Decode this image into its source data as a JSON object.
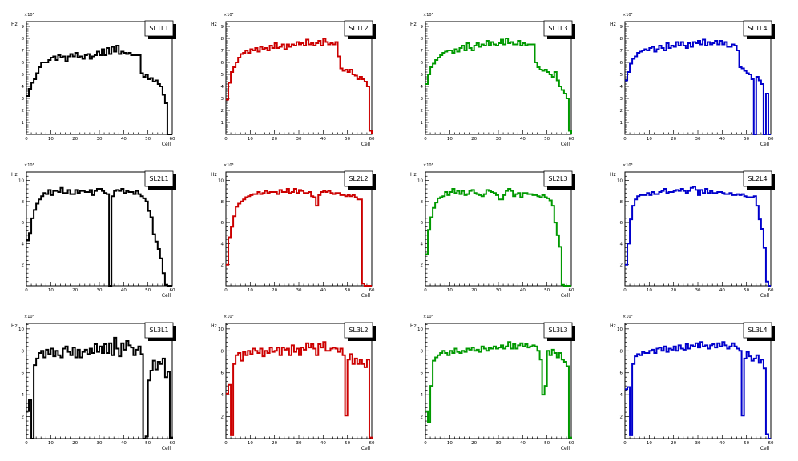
{
  "chart_data": [
    {
      "type": "step",
      "title": "SL1L1",
      "ylabel": "Hz",
      "xlabel": "Cell",
      "exponent": "×10³",
      "xlim": [
        0,
        60
      ],
      "ylim": [
        0,
        9.4
      ],
      "yticks": [
        1,
        2,
        3,
        4,
        5,
        6,
        7,
        8,
        9
      ],
      "xticks": [
        0,
        10,
        20,
        30,
        40,
        50,
        60
      ],
      "color": "#000000",
      "values": [
        3.2,
        3.8,
        4.3,
        4.6,
        5.1,
        5.6,
        6.0,
        6.0,
        6.0,
        6.2,
        6.4,
        6.5,
        6.2,
        6.6,
        6.4,
        6.5,
        6.1,
        6.5,
        6.7,
        6.5,
        6.8,
        6.4,
        6.5,
        6.3,
        6.6,
        6.7,
        6.3,
        6.5,
        6.6,
        6.9,
        6.6,
        7.1,
        6.6,
        7.2,
        6.7,
        7.3,
        6.9,
        7.4,
        6.7,
        6.9,
        6.8,
        6.7,
        6.8,
        6.6,
        6.6,
        6.6,
        6.6,
        5.1,
        4.8,
        5.0,
        4.6,
        4.7,
        4.4,
        4.5,
        4.2,
        4.0,
        3.3,
        2.6,
        0.0,
        0.0
      ]
    },
    {
      "type": "step",
      "title": "SL1L2",
      "ylabel": "Hz",
      "xlabel": "Cell",
      "exponent": "×10³",
      "xlim": [
        0,
        60
      ],
      "ylim": [
        0,
        9.4
      ],
      "yticks": [
        1,
        2,
        3,
        4,
        5,
        6,
        7,
        8,
        9
      ],
      "xticks": [
        0,
        10,
        20,
        30,
        40,
        50,
        60
      ],
      "color": "#cc0000",
      "values": [
        2.9,
        4.3,
        5.2,
        5.6,
        6.0,
        6.4,
        6.7,
        6.8,
        7.0,
        6.8,
        7.1,
        7.0,
        7.2,
        6.9,
        7.3,
        7.1,
        7.2,
        7.0,
        7.4,
        7.2,
        7.6,
        7.2,
        7.3,
        7.5,
        7.1,
        7.5,
        7.3,
        7.5,
        7.4,
        7.7,
        7.5,
        7.6,
        7.4,
        7.9,
        7.5,
        7.6,
        7.4,
        7.6,
        7.8,
        7.4,
        8.0,
        7.7,
        7.5,
        7.6,
        7.5,
        7.7,
        6.5,
        5.5,
        5.3,
        5.4,
        5.2,
        5.4,
        5.0,
        4.9,
        4.6,
        4.8,
        4.6,
        4.4,
        4.0,
        0.3
      ]
    },
    {
      "type": "step",
      "title": "SL1L3",
      "ylabel": "Hz",
      "xlabel": "Cell",
      "exponent": "×10³",
      "xlim": [
        0,
        60
      ],
      "ylim": [
        0,
        9.4
      ],
      "yticks": [
        1,
        2,
        3,
        4,
        5,
        6,
        7,
        8,
        9
      ],
      "xticks": [
        0,
        10,
        20,
        30,
        40,
        50,
        60
      ],
      "color": "#009900",
      "values": [
        4.2,
        5.0,
        5.6,
        5.9,
        6.2,
        6.4,
        6.6,
        6.8,
        6.9,
        7.0,
        7.0,
        6.8,
        7.1,
        6.9,
        7.2,
        7.4,
        7.0,
        7.6,
        7.2,
        7.0,
        7.4,
        7.6,
        7.3,
        7.5,
        7.4,
        7.8,
        7.4,
        7.7,
        7.5,
        7.4,
        7.6,
        7.9,
        7.5,
        8.0,
        7.6,
        7.7,
        7.5,
        7.5,
        7.8,
        7.4,
        7.6,
        7.4,
        7.5,
        7.5,
        7.5,
        6.0,
        5.6,
        5.4,
        5.3,
        5.4,
        5.2,
        5.0,
        4.8,
        5.2,
        4.5,
        4.0,
        3.7,
        3.4,
        3.0,
        0.3
      ]
    },
    {
      "type": "step",
      "title": "SL1L4",
      "ylabel": "Hz",
      "xlabel": "Cell",
      "exponent": "×10³",
      "xlim": [
        0,
        60
      ],
      "ylim": [
        0,
        9.4
      ],
      "yticks": [
        1,
        2,
        3,
        4,
        5,
        6,
        7,
        8,
        9
      ],
      "xticks": [
        0,
        10,
        20,
        30,
        40,
        50,
        60
      ],
      "color": "#0000cc",
      "values": [
        4.5,
        5.2,
        5.9,
        6.3,
        6.5,
        6.8,
        6.9,
        7.0,
        7.1,
        7.0,
        7.2,
        7.3,
        6.9,
        7.1,
        7.4,
        7.2,
        7.0,
        7.6,
        7.2,
        7.4,
        7.3,
        7.7,
        7.4,
        7.7,
        7.4,
        7.2,
        7.6,
        7.3,
        7.7,
        7.6,
        7.8,
        7.5,
        7.9,
        7.4,
        7.7,
        7.5,
        7.6,
        7.8,
        7.5,
        7.8,
        7.5,
        7.7,
        7.3,
        7.3,
        7.5,
        7.4,
        7.0,
        5.6,
        5.5,
        5.3,
        5.1,
        5.0,
        4.6,
        0.0,
        4.8,
        4.5,
        4.2,
        0.0,
        3.4,
        0.0
      ]
    },
    {
      "type": "step",
      "title": "SL2L1",
      "ylabel": "Hz",
      "xlabel": "Cell",
      "exponent": "×10³",
      "xlim": [
        0,
        60
      ],
      "ylim": [
        0,
        10.8
      ],
      "yticks": [
        2,
        4,
        6,
        8,
        10
      ],
      "xticks": [
        0,
        10,
        20,
        30,
        40,
        50,
        60
      ],
      "color": "#000000",
      "values": [
        4.3,
        5.0,
        6.4,
        7.2,
        7.8,
        8.2,
        8.5,
        8.8,
        8.7,
        9.1,
        8.6,
        9.0,
        9.0,
        8.9,
        9.3,
        8.8,
        8.8,
        9.1,
        8.7,
        8.7,
        9.1,
        8.8,
        9.0,
        9.0,
        8.9,
        8.9,
        9.1,
        8.6,
        9.0,
        9.2,
        9.2,
        9.0,
        8.8,
        8.7,
        0.0,
        8.5,
        9.0,
        9.1,
        9.0,
        9.2,
        8.8,
        9.0,
        8.9,
        8.9,
        8.7,
        9.0,
        8.7,
        8.5,
        8.3,
        8.0,
        7.1,
        6.5,
        4.9,
        4.2,
        3.5,
        2.6,
        1.2,
        0.1,
        0.0,
        0.0
      ]
    },
    {
      "type": "step",
      "title": "SL2L2",
      "ylabel": "Hz",
      "xlabel": "Cell",
      "exponent": "×10³",
      "xlim": [
        0,
        60
      ],
      "ylim": [
        0,
        10.8
      ],
      "yticks": [
        2,
        4,
        6,
        8,
        10
      ],
      "xticks": [
        0,
        10,
        20,
        30,
        40,
        50,
        60
      ],
      "color": "#cc0000",
      "values": [
        2.0,
        4.6,
        5.6,
        6.6,
        7.5,
        7.8,
        8.0,
        8.2,
        8.4,
        8.5,
        8.6,
        8.7,
        8.7,
        8.9,
        8.7,
        8.8,
        9.0,
        8.8,
        8.9,
        8.9,
        8.9,
        8.7,
        9.1,
        8.9,
        8.9,
        9.2,
        8.8,
        8.9,
        9.2,
        8.8,
        9.1,
        9.0,
        8.8,
        8.8,
        8.9,
        8.5,
        8.4,
        7.6,
        8.6,
        8.9,
        9.0,
        8.9,
        9.0,
        8.8,
        8.7,
        8.8,
        8.8,
        8.6,
        8.6,
        8.5,
        8.6,
        8.5,
        8.6,
        8.4,
        8.2,
        8.2,
        0.2,
        0.0,
        0.0,
        0.0
      ]
    },
    {
      "type": "step",
      "title": "SL2L3",
      "ylabel": "Hz",
      "xlabel": "Cell",
      "exponent": "×10³",
      "xlim": [
        0,
        60
      ],
      "ylim": [
        0,
        10.8
      ],
      "yticks": [
        2,
        4,
        6,
        8,
        10
      ],
      "xticks": [
        0,
        10,
        20,
        30,
        40,
        50,
        60
      ],
      "color": "#009900",
      "values": [
        3.0,
        5.3,
        6.5,
        7.4,
        7.9,
        8.3,
        8.4,
        8.5,
        8.9,
        8.6,
        8.9,
        9.2,
        8.8,
        9.0,
        8.7,
        9.0,
        8.6,
        8.7,
        9.0,
        9.1,
        8.8,
        8.7,
        8.6,
        8.5,
        8.7,
        9.1,
        9.0,
        8.9,
        8.8,
        8.6,
        8.2,
        8.2,
        8.6,
        9.0,
        9.2,
        9.0,
        8.5,
        8.7,
        8.8,
        8.4,
        8.8,
        8.8,
        8.7,
        8.7,
        8.6,
        8.6,
        8.5,
        8.4,
        8.6,
        8.4,
        8.3,
        8.1,
        7.6,
        6.0,
        4.8,
        3.7,
        0.1,
        0.0,
        0.0,
        0.0
      ]
    },
    {
      "type": "step",
      "title": "SL2L4",
      "ylabel": "Hz",
      "xlabel": "Cell",
      "exponent": "×10³",
      "xlim": [
        0,
        60
      ],
      "ylim": [
        0,
        10.8
      ],
      "yticks": [
        2,
        4,
        6,
        8,
        10
      ],
      "xticks": [
        0,
        10,
        20,
        30,
        40,
        50,
        60
      ],
      "color": "#0000cc",
      "values": [
        2.0,
        4.0,
        6.3,
        7.6,
        8.2,
        8.5,
        8.6,
        8.6,
        8.6,
        8.8,
        8.6,
        8.9,
        8.7,
        8.7,
        8.9,
        9.0,
        9.2,
        8.8,
        8.9,
        8.9,
        9.0,
        9.1,
        9.0,
        9.2,
        9.0,
        8.8,
        9.0,
        9.3,
        9.4,
        9.1,
        8.6,
        9.1,
        8.8,
        9.2,
        8.8,
        9.0,
        8.8,
        8.8,
        8.9,
        8.9,
        8.8,
        8.7,
        8.7,
        8.8,
        8.6,
        8.6,
        8.7,
        8.6,
        8.7,
        8.5,
        8.4,
        8.4,
        8.4,
        8.5,
        7.6,
        6.3,
        5.4,
        3.6,
        0.4,
        0.0
      ]
    },
    {
      "type": "step",
      "title": "SL3L1",
      "ylabel": "Hz",
      "xlabel": "Cell",
      "exponent": "×10³",
      "xlim": [
        0,
        60
      ],
      "ylim": [
        0,
        10.5
      ],
      "yticks": [
        2,
        4,
        6,
        8,
        10
      ],
      "xticks": [
        0,
        10,
        20,
        30,
        40,
        50,
        60
      ],
      "color": "#000000",
      "values": [
        2.5,
        3.5,
        0.0,
        6.7,
        7.3,
        7.8,
        8.0,
        7.4,
        8.1,
        7.7,
        8.2,
        7.5,
        8.0,
        7.6,
        7.4,
        8.2,
        8.4,
        7.9,
        7.6,
        8.3,
        7.4,
        8.1,
        7.4,
        7.9,
        8.1,
        7.7,
        8.2,
        7.8,
        8.6,
        7.9,
        8.4,
        7.8,
        8.6,
        7.8,
        8.7,
        7.6,
        9.2,
        8.2,
        7.5,
        8.7,
        8.1,
        8.9,
        8.5,
        8.3,
        7.6,
        8.1,
        8.4,
        7.7,
        0.0,
        0.2,
        5.3,
        6.2,
        7.1,
        6.3,
        7.0,
        6.8,
        7.3,
        5.6,
        6.1,
        0.1
      ]
    },
    {
      "type": "step",
      "title": "SL3L2",
      "ylabel": "Hz",
      "xlabel": "Cell",
      "exponent": "×10³",
      "xlim": [
        0,
        60
      ],
      "ylim": [
        0,
        10.5
      ],
      "yticks": [
        2,
        4,
        6,
        8,
        10
      ],
      "xticks": [
        0,
        10,
        20,
        30,
        40,
        50,
        60
      ],
      "color": "#cc0000",
      "values": [
        4.1,
        4.9,
        0.3,
        6.8,
        7.6,
        7.8,
        7.1,
        7.9,
        7.6,
        8.0,
        7.7,
        8.2,
        8.0,
        7.8,
        8.2,
        7.5,
        8.0,
        7.8,
        8.3,
        7.9,
        8.0,
        8.3,
        7.6,
        8.3,
        8.1,
        8.2,
        7.6,
        8.5,
        7.9,
        8.2,
        7.6,
        8.3,
        8.1,
        8.7,
        8.3,
        8.6,
        8.2,
        7.6,
        8.6,
        8.3,
        8.8,
        8.0,
        8.0,
        8.2,
        8.3,
        8.2,
        7.9,
        8.2,
        7.6,
        2.1,
        7.2,
        7.7,
        6.8,
        7.3,
        6.8,
        7.2,
        6.8,
        6.5,
        7.2,
        0.1
      ]
    },
    {
      "type": "step",
      "title": "SL3L3",
      "ylabel": "Hz",
      "xlabel": "Cell",
      "exponent": "×10³",
      "xlim": [
        0,
        60
      ],
      "ylim": [
        0,
        10.5
      ],
      "yticks": [
        2,
        4,
        6,
        8,
        10
      ],
      "xticks": [
        0,
        10,
        20,
        30,
        40,
        50,
        60
      ],
      "color": "#009900",
      "values": [
        2.5,
        1.5,
        4.8,
        7.1,
        7.4,
        7.6,
        7.8,
        8.0,
        7.8,
        7.6,
        8.0,
        7.8,
        8.2,
        7.9,
        7.8,
        8.0,
        7.9,
        8.2,
        8.1,
        8.3,
        8.0,
        8.1,
        7.9,
        8.4,
        8.2,
        8.0,
        8.3,
        8.2,
        8.4,
        8.2,
        8.3,
        8.5,
        8.2,
        8.4,
        8.8,
        8.2,
        8.6,
        8.2,
        8.5,
        8.7,
        8.4,
        8.6,
        8.3,
        8.4,
        8.5,
        8.4,
        8.0,
        7.2,
        4.0,
        4.8,
        8.0,
        7.6,
        8.1,
        7.8,
        7.4,
        7.8,
        7.2,
        7.0,
        6.6,
        0.1
      ]
    },
    {
      "type": "step",
      "title": "SL3L4",
      "ylabel": "Hz",
      "xlabel": "Cell",
      "exponent": "×10³",
      "xlim": [
        0,
        60
      ],
      "ylim": [
        0,
        10.5
      ],
      "yticks": [
        2,
        4,
        6,
        8,
        10
      ],
      "xticks": [
        0,
        10,
        20,
        30,
        40,
        50,
        60
      ],
      "color": "#0000cc",
      "values": [
        4.5,
        4.7,
        0.3,
        6.8,
        7.5,
        7.7,
        7.6,
        7.9,
        7.8,
        7.8,
        8.0,
        8.1,
        7.8,
        8.2,
        8.3,
        8.0,
        8.4,
        7.9,
        8.2,
        8.1,
        8.4,
        8.0,
        8.5,
        8.2,
        8.1,
        8.6,
        8.2,
        8.5,
        8.4,
        8.7,
        8.3,
        8.8,
        8.4,
        8.5,
        8.2,
        8.5,
        8.6,
        8.3,
        8.7,
        8.4,
        8.8,
        8.5,
        8.2,
        8.4,
        8.7,
        8.4,
        8.2,
        8.0,
        2.1,
        7.3,
        7.9,
        7.5,
        7.1,
        7.3,
        7.6,
        6.9,
        7.2,
        6.4,
        0.4,
        0.0
      ]
    }
  ]
}
